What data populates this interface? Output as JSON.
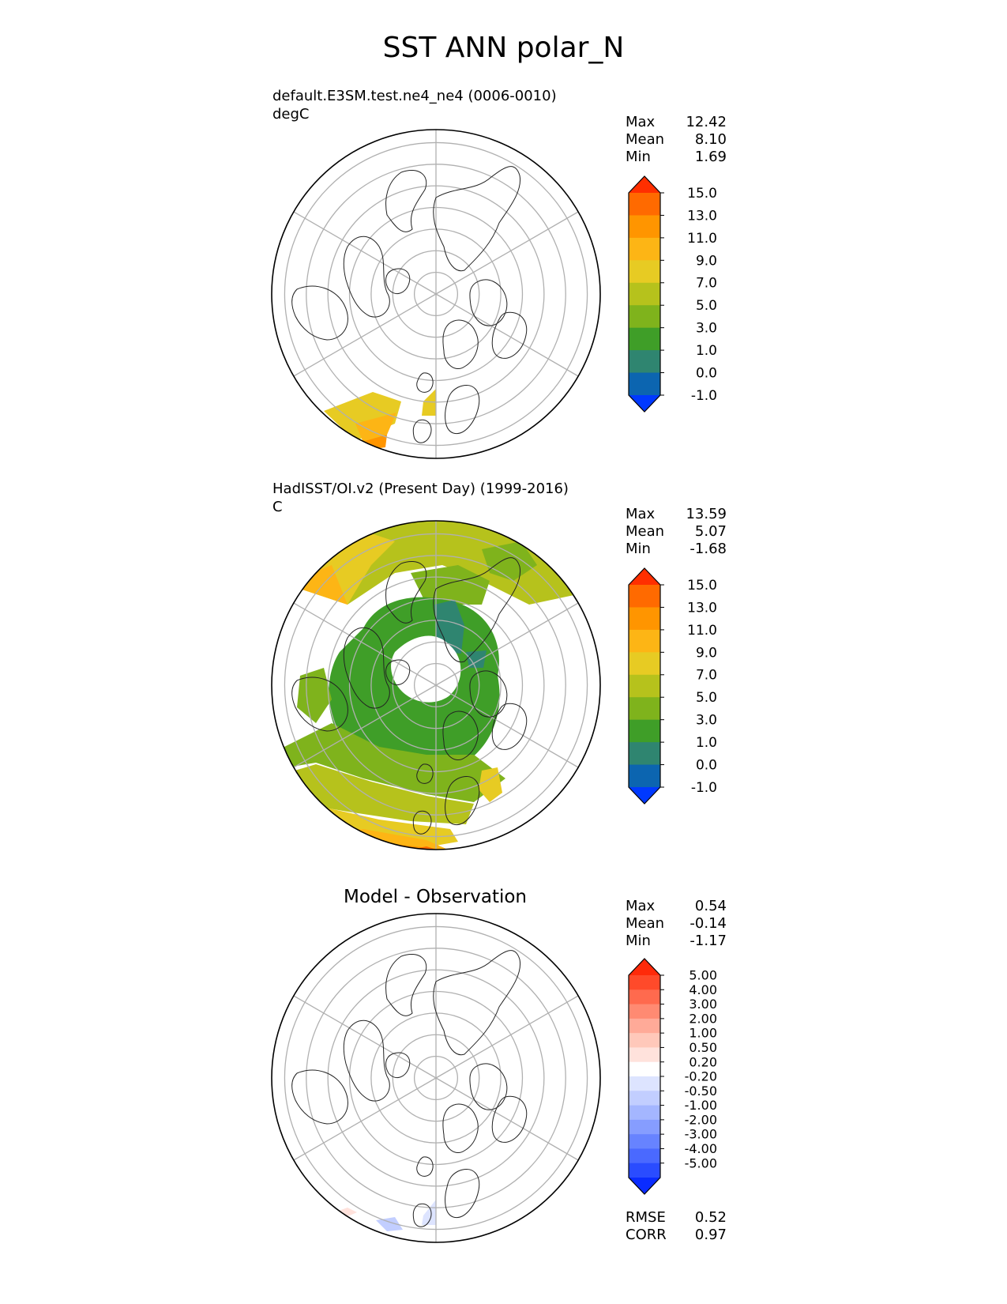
{
  "title": "SST ANN polar_N",
  "chart_data": [
    {
      "type": "heatmap",
      "projection": "north polar stereographic",
      "title": "default.E3SM.test.ne4_ne4 (0006-0010)",
      "units": "degC",
      "stats": [
        {
          "label": "Max",
          "value": "12.42"
        },
        {
          "label": "Mean",
          "value": "8.10"
        },
        {
          "label": "Min",
          "value": "1.69"
        }
      ],
      "colorbar": {
        "ticks": [
          "15.0",
          "13.0",
          "11.0",
          "9.0",
          "7.0",
          "5.0",
          "3.0",
          "1.0",
          "0.0",
          "-1.0"
        ],
        "colors": [
          "#ff2f00",
          "#ff6a00",
          "#ff9500",
          "#fdb515",
          "#e7cb23",
          "#b6c21c",
          "#7fb31c",
          "#3f9e28",
          "#2f8570",
          "#0c65b0",
          "#0039ff"
        ]
      }
    },
    {
      "type": "heatmap",
      "projection": "north polar stereographic",
      "title": "HadISST/OI.v2 (Present Day) (1999-2016)",
      "units": "C",
      "stats": [
        {
          "label": "Max",
          "value": "13.59"
        },
        {
          "label": "Mean",
          "value": "5.07"
        },
        {
          "label": "Min",
          "value": "-1.68"
        }
      ],
      "colorbar": {
        "ticks": [
          "15.0",
          "13.0",
          "11.0",
          "9.0",
          "7.0",
          "5.0",
          "3.0",
          "1.0",
          "0.0",
          "-1.0"
        ],
        "colors": [
          "#ff2f00",
          "#ff6a00",
          "#ff9500",
          "#fdb515",
          "#e7cb23",
          "#b6c21c",
          "#7fb31c",
          "#3f9e28",
          "#2f8570",
          "#0c65b0",
          "#0039ff"
        ]
      }
    },
    {
      "type": "heatmap",
      "projection": "north polar stereographic",
      "title": "Model - Observation",
      "stats": [
        {
          "label": "Max",
          "value": "0.54"
        },
        {
          "label": "Mean",
          "value": "-0.14"
        },
        {
          "label": "Min",
          "value": "-1.17"
        }
      ],
      "metrics": [
        {
          "label": "RMSE",
          "value": "0.52"
        },
        {
          "label": "CORR",
          "value": "0.97"
        }
      ],
      "colorbar": {
        "ticks": [
          "5.00",
          "4.00",
          "3.00",
          "2.00",
          "1.00",
          "0.50",
          "0.20",
          "-0.20",
          "-0.50",
          "-1.00",
          "-2.00",
          "-3.00",
          "-4.00",
          "-5.00"
        ],
        "colors": [
          "#ff2a0a",
          "#ff4a2a",
          "#ff6a4e",
          "#ff8a72",
          "#ffaa98",
          "#ffc8ba",
          "#ffe2dc",
          "#ffffff",
          "#dde4ff",
          "#c2ceff",
          "#a4b6ff",
          "#869dff",
          "#6783ff",
          "#4a69ff",
          "#2a4cff",
          "#0a2cff"
        ]
      }
    }
  ]
}
